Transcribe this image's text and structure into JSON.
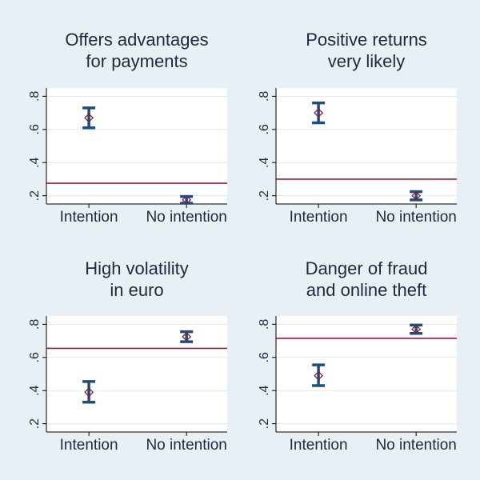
{
  "colors": {
    "background": "#e9f0f5",
    "plot_background": "#ffffff",
    "grid": "#e3e8ec",
    "ci": "#1f4e79",
    "point": "#8b1a3a",
    "reference_line": "#a0173f",
    "text": "#1c2a3e"
  },
  "chart_data": [
    {
      "type": "scatter",
      "title_lines": [
        "Offers advantages",
        "for payments"
      ],
      "categories": [
        "Intention",
        "No intention"
      ],
      "values": [
        0.67,
        0.175
      ],
      "ci_low": [
        0.61,
        0.155
      ],
      "ci_high": [
        0.73,
        0.195
      ],
      "reference_line": 0.275,
      "ylim": [
        0.15,
        0.85
      ],
      "yticks": [
        0.2,
        0.4,
        0.6,
        0.8
      ],
      "ytick_labels": [
        ".2",
        ".4",
        ".6",
        ".8"
      ],
      "grid": true
    },
    {
      "type": "scatter",
      "title_lines": [
        "Positive returns",
        "very likely"
      ],
      "categories": [
        "Intention",
        "No intention"
      ],
      "values": [
        0.7,
        0.2
      ],
      "ci_low": [
        0.64,
        0.175
      ],
      "ci_high": [
        0.76,
        0.225
      ],
      "reference_line": 0.3,
      "ylim": [
        0.15,
        0.85
      ],
      "yticks": [
        0.2,
        0.4,
        0.6,
        0.8
      ],
      "ytick_labels": [
        ".2",
        ".4",
        ".6",
        ".8"
      ],
      "grid": true
    },
    {
      "type": "scatter",
      "title_lines": [
        "High volatility",
        "in euro"
      ],
      "categories": [
        "Intention",
        "No intention"
      ],
      "values": [
        0.39,
        0.725
      ],
      "ci_low": [
        0.33,
        0.695
      ],
      "ci_high": [
        0.455,
        0.755
      ],
      "reference_line": 0.655,
      "ylim": [
        0.15,
        0.85
      ],
      "yticks": [
        0.2,
        0.4,
        0.6,
        0.8
      ],
      "ytick_labels": [
        ".2",
        ".4",
        ".6",
        ".8"
      ],
      "grid": true
    },
    {
      "type": "scatter",
      "title_lines": [
        "Danger of fraud",
        "and online theft"
      ],
      "categories": [
        "Intention",
        "No intention"
      ],
      "values": [
        0.49,
        0.77
      ],
      "ci_low": [
        0.43,
        0.745
      ],
      "ci_high": [
        0.555,
        0.795
      ],
      "reference_line": 0.715,
      "ylim": [
        0.15,
        0.85
      ],
      "yticks": [
        0.2,
        0.4,
        0.6,
        0.8
      ],
      "ytick_labels": [
        ".2",
        ".4",
        ".6",
        ".8"
      ],
      "grid": true
    }
  ]
}
